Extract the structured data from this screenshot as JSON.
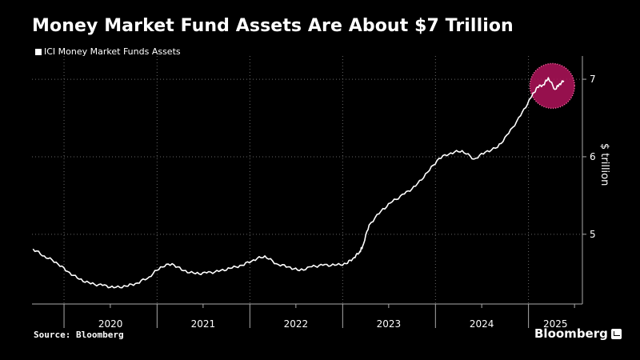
{
  "chart_data": {
    "type": "line",
    "title": "Money Market Fund Assets Are About $7 Trillion",
    "ylabel": "$ trillion",
    "xlabel": "",
    "ylim": [
      4.1,
      7.3
    ],
    "yticks": [
      5,
      6,
      7
    ],
    "x_tick_labels": [
      "2020",
      "2021",
      "2022",
      "2023",
      "2024",
      "2025"
    ],
    "legend": {
      "position": "top-left",
      "entries": [
        "ICI Money Market Funds Assets"
      ]
    },
    "grid": "vertical dotted",
    "highlight": {
      "shape": "circle",
      "color": "#b0135a",
      "around": "latest values"
    },
    "series": [
      {
        "name": "ICI Money Market Funds Assets",
        "color": "#ffffff",
        "x": [
          "2019-09-01",
          "2019-10-15",
          "2019-12-01",
          "2020-01-15",
          "2020-03-01",
          "2020-04-15",
          "2020-06-01",
          "2020-07-15",
          "2020-09-01",
          "2020-10-15",
          "2020-12-01",
          "2021-01-15",
          "2021-03-01",
          "2021-04-15",
          "2021-06-01",
          "2021-07-15",
          "2021-09-01",
          "2021-10-15",
          "2021-12-01",
          "2022-01-15",
          "2022-03-01",
          "2022-04-15",
          "2022-06-01",
          "2022-07-15",
          "2022-09-01",
          "2022-10-15",
          "2022-12-01",
          "2023-01-15",
          "2023-02-15",
          "2023-03-10",
          "2023-03-20",
          "2023-04-15",
          "2023-06-01",
          "2023-07-15",
          "2023-09-01",
          "2023-10-15",
          "2023-12-01",
          "2024-01-15",
          "2024-03-01",
          "2024-04-15",
          "2024-06-01",
          "2024-07-15",
          "2024-09-01",
          "2024-10-15",
          "2024-12-01",
          "2025-01-10",
          "2025-02-05",
          "2025-03-01",
          "2025-03-20",
          "2025-04-15",
          "2025-05-01",
          "2025-05-20"
        ],
        "y": [
          4.81,
          4.72,
          4.64,
          4.52,
          4.42,
          4.36,
          4.34,
          4.31,
          4.33,
          4.37,
          4.45,
          4.58,
          4.62,
          4.53,
          4.49,
          4.5,
          4.52,
          4.56,
          4.6,
          4.67,
          4.72,
          4.62,
          4.58,
          4.53,
          4.58,
          4.6,
          4.6,
          4.62,
          4.7,
          4.78,
          4.84,
          5.12,
          5.3,
          5.42,
          5.52,
          5.62,
          5.8,
          5.98,
          6.05,
          6.08,
          5.97,
          6.06,
          6.12,
          6.3,
          6.53,
          6.76,
          6.9,
          6.93,
          7.02,
          6.87,
          6.93,
          6.98
        ]
      }
    ]
  },
  "source": "Source: Bloomberg",
  "brand": "Bloomberg"
}
